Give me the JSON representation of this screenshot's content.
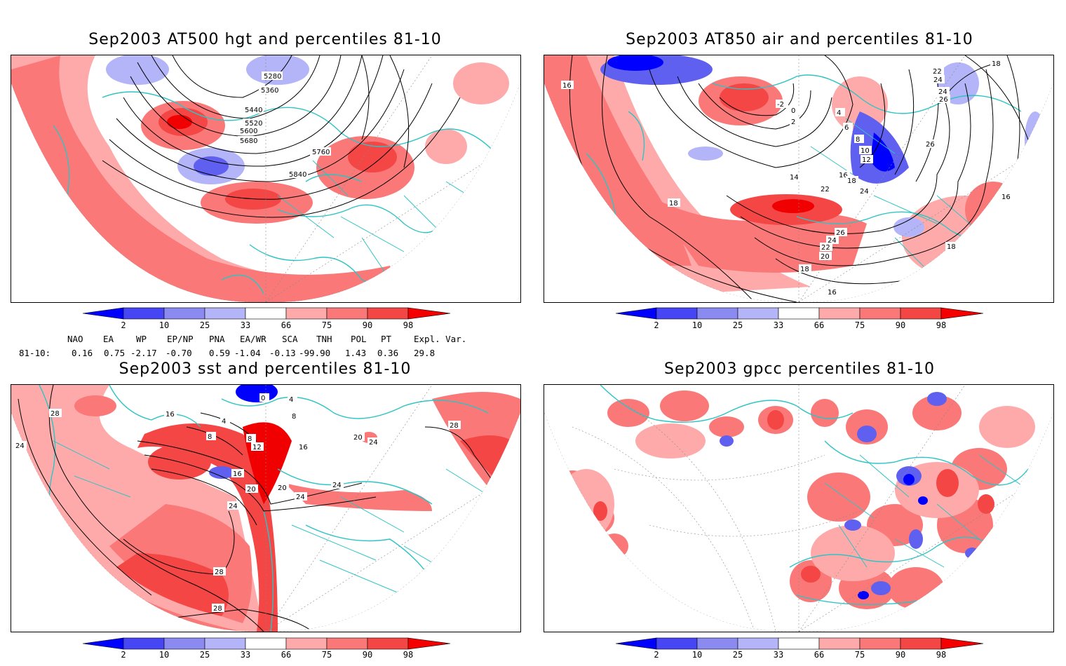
{
  "panels": [
    {
      "title": "Sep2003 AT500 hgt and percentiles 81-10",
      "contour_labels": [
        "5280",
        "5360",
        "5440",
        "5520",
        "5600",
        "5680",
        "5760",
        "5840"
      ]
    },
    {
      "title": "Sep2003 AT850 air and percentiles 81-10",
      "contour_labels": [
        "16",
        "22",
        "24",
        "26",
        "26",
        "-2",
        "0",
        "2",
        "4",
        "6",
        "8",
        "10",
        "12",
        "14",
        "16",
        "18",
        "18",
        "22",
        "24",
        "24",
        "26",
        "24",
        "22",
        "20",
        "18",
        "18",
        "16",
        "18",
        "16"
      ]
    },
    {
      "title": "Sep2003 sst and percentiles 81-10",
      "contour_labels": [
        "28",
        "24",
        "16",
        "4",
        "8",
        "12",
        "8",
        "16",
        "20",
        "20",
        "24",
        "24",
        "24",
        "28",
        "28",
        "28",
        "20",
        "24",
        "16",
        "0",
        "4",
        "8"
      ]
    },
    {
      "title": "Sep2003 gpcc percentiles 81-10",
      "contour_labels": []
    }
  ],
  "colorbar": {
    "labels": [
      "2",
      "10",
      "25",
      "33",
      "66",
      "75",
      "90",
      "98"
    ],
    "colors": {
      "blue_dark": "#0000ff",
      "blue_mid": "#4646f5",
      "blue_light": "#8a8af0",
      "blue_pale": "#b4b4f8",
      "red_pale": "#ffaaaa",
      "red_light": "#fa7878",
      "red_mid": "#f54646",
      "red_dark": "#f50000"
    }
  },
  "indices": {
    "headers": [
      "NAO",
      "EA",
      "WP",
      "EP/NP",
      "PNA",
      "EA/WR",
      "SCA",
      "TNH",
      "POL",
      "PT",
      "Expl. Var."
    ],
    "row_label": "81-10:",
    "values": [
      "0.16",
      "0.75",
      "-2.17",
      "-0.70",
      "0.59",
      "-1.04",
      "-0.13",
      "-99.90",
      "1.43",
      "0.36",
      "29.8"
    ]
  },
  "map_colors": {
    "land_outline": "#2ec4c4",
    "red_pale": "#ffaaaa",
    "red_light": "#fa7878",
    "red_mid": "#f54646",
    "red_dark": "#f00000",
    "blue_pale": "#b4b4f8",
    "blue_mid": "#6060f0",
    "blue_dark": "#0000ff",
    "contour": "#000000"
  }
}
